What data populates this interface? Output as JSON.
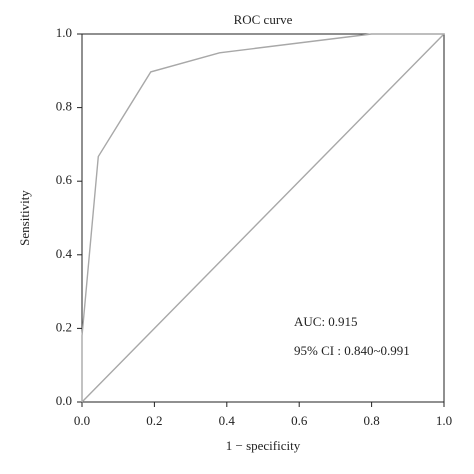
{
  "chart_data": {
    "type": "line",
    "title": "ROC curve",
    "x_label": "1 − specificity",
    "y_label": "Sensitivity",
    "series": [
      {
        "color": "#a8a8a8",
        "x": [
          0,
          0,
          0.045,
          0.19,
          0.38,
          0.8,
          1
        ],
        "values": [
          0,
          0.18,
          0.667,
          0.897,
          0.949,
          1,
          1
        ]
      },
      {
        "color": "#a8a8a8",
        "x": [
          0,
          1
        ],
        "values": [
          0,
          1
        ]
      }
    ],
    "xlim": [
      0,
      1
    ],
    "ylim": [
      0,
      1
    ],
    "xticks": [
      {
        "value": 0,
        "label": "0.0"
      },
      0.2,
      0.4,
      0.6,
      0.8,
      {
        "value": 1,
        "label": "1.0"
      }
    ],
    "yticks": [
      {
        "value": 0,
        "label": "0.0"
      },
      0.2,
      0.4,
      0.6,
      0.8,
      {
        "value": 1,
        "label": "1.0"
      }
    ],
    "annotations": [
      "AUC: 0.915",
      "95% CI : 0.840~0.991"
    ]
  }
}
